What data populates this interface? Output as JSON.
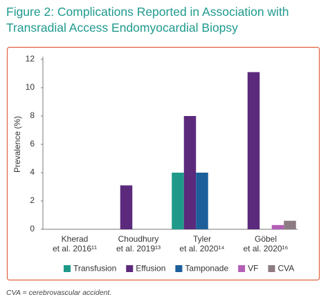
{
  "chart_data": {
    "type": "bar",
    "title": "Figure 2: Complications Reported in Association with Transradial Access Endomyocardial Biopsy",
    "y_label": "Prevalence (%)",
    "caption": "CVA = cerebrovascular accident.",
    "categories": [
      [
        "Kherad",
        "et al. 2016¹¹"
      ],
      [
        "Choudhury",
        "et al. 2019¹³"
      ],
      [
        "Tyler",
        "et al. 2020¹⁴"
      ],
      [
        "Göbel",
        "et al. 2020¹⁶"
      ]
    ],
    "series": [
      {
        "name": "Transfusion",
        "color": "#1f9a8a",
        "values": [
          0,
          0,
          4,
          0
        ]
      },
      {
        "name": "Effusion",
        "color": "#5b2a7c",
        "values": [
          0,
          3.1,
          8,
          11.1
        ]
      },
      {
        "name": "Tamponade",
        "color": "#1c5f9b",
        "values": [
          0,
          0,
          4,
          0
        ]
      },
      {
        "name": "VF",
        "color": "#b25fb6",
        "values": [
          0,
          0,
          0,
          0.3
        ]
      },
      {
        "name": "CVA",
        "color": "#8c7b82",
        "values": [
          0,
          0,
          0,
          0.6
        ]
      }
    ],
    "ylim": [
      0,
      12
    ],
    "yticks": [
      0,
      2,
      4,
      6,
      8,
      10,
      12
    ],
    "grid": false
  }
}
